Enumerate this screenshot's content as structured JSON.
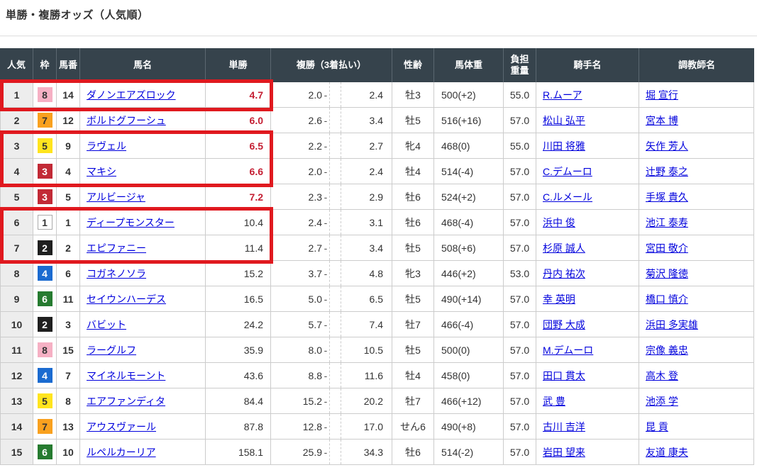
{
  "page": {
    "title": "単勝・複勝オッズ（人気順）"
  },
  "colors": {
    "header_bg": "#36434c",
    "hot_odds_red": "#c41e32",
    "highlight_box_red": "#e0191f",
    "link_blue": "#0000dd",
    "frame_colors": {
      "1": "#ffffff",
      "2": "#1f1f1f",
      "3": "#c22a36",
      "4": "#1b6bd0",
      "5": "#ffe41e",
      "6": "#267b30",
      "7": "#f9a11f",
      "8": "#f6b0c4"
    }
  },
  "highlights": {
    "color": "#e0191f",
    "boxed_rank_groups": [
      [
        1
      ],
      [
        3,
        4
      ],
      [
        6,
        7
      ]
    ]
  },
  "table": {
    "place_separator": "-",
    "headers": {
      "rank": "人気",
      "frame": "枠",
      "number": "馬番",
      "horse": "馬名",
      "win": "単勝",
      "place": "複勝（3着払い）",
      "sex_age": "性齢",
      "weight": "馬体重",
      "load_line1": "負担",
      "load_line2": "重量",
      "jockey": "騎手名",
      "trainer": "調教師名"
    },
    "rows": [
      {
        "rank": "1",
        "frame": "8",
        "number": "14",
        "horse": "ダノンエアズロック",
        "win": "4.7",
        "win_hot": true,
        "place_low": "2.0",
        "place_high": "2.4",
        "sex_age": "牡3",
        "weight": "500(+2)",
        "load": "55.0",
        "jockey": "R.ムーア",
        "trainer": "堀 宣行"
      },
      {
        "rank": "2",
        "frame": "7",
        "number": "12",
        "horse": "ボルドグフーシュ",
        "win": "6.0",
        "win_hot": true,
        "place_low": "2.6",
        "place_high": "3.4",
        "sex_age": "牡5",
        "weight": "516(+16)",
        "load": "57.0",
        "jockey": "松山 弘平",
        "trainer": "宮本 博"
      },
      {
        "rank": "3",
        "frame": "5",
        "number": "9",
        "horse": "ラヴェル",
        "win": "6.5",
        "win_hot": true,
        "place_low": "2.2",
        "place_high": "2.7",
        "sex_age": "牝4",
        "weight": "468(0)",
        "load": "55.0",
        "jockey": "川田 将雅",
        "trainer": "矢作 芳人"
      },
      {
        "rank": "4",
        "frame": "3",
        "number": "4",
        "horse": "マキシ",
        "win": "6.6",
        "win_hot": true,
        "place_low": "2.0",
        "place_high": "2.4",
        "sex_age": "牡4",
        "weight": "514(-4)",
        "load": "57.0",
        "jockey": "C.デムーロ",
        "trainer": "辻野 泰之"
      },
      {
        "rank": "5",
        "frame": "3",
        "number": "5",
        "horse": "アルビージャ",
        "win": "7.2",
        "win_hot": true,
        "place_low": "2.3",
        "place_high": "2.9",
        "sex_age": "牡6",
        "weight": "524(+2)",
        "load": "57.0",
        "jockey": "C.ルメール",
        "trainer": "手塚 貴久"
      },
      {
        "rank": "6",
        "frame": "1",
        "number": "1",
        "horse": "ディープモンスター",
        "win": "10.4",
        "win_hot": false,
        "place_low": "2.4",
        "place_high": "3.1",
        "sex_age": "牡6",
        "weight": "468(-4)",
        "load": "57.0",
        "jockey": "浜中 俊",
        "trainer": "池江 泰寿"
      },
      {
        "rank": "7",
        "frame": "2",
        "number": "2",
        "horse": "エピファニー",
        "win": "11.4",
        "win_hot": false,
        "place_low": "2.7",
        "place_high": "3.4",
        "sex_age": "牡5",
        "weight": "508(+6)",
        "load": "57.0",
        "jockey": "杉原 誠人",
        "trainer": "宮田 敬介"
      },
      {
        "rank": "8",
        "frame": "4",
        "number": "6",
        "horse": "コガネノソラ",
        "win": "15.2",
        "win_hot": false,
        "place_low": "3.7",
        "place_high": "4.8",
        "sex_age": "牝3",
        "weight": "446(+2)",
        "load": "53.0",
        "jockey": "丹内 祐次",
        "trainer": "菊沢 隆徳"
      },
      {
        "rank": "9",
        "frame": "6",
        "number": "11",
        "horse": "セイウンハーデス",
        "win": "16.5",
        "win_hot": false,
        "place_low": "5.0",
        "place_high": "6.5",
        "sex_age": "牡5",
        "weight": "490(+14)",
        "load": "57.0",
        "jockey": "幸 英明",
        "trainer": "橋口 慎介"
      },
      {
        "rank": "10",
        "frame": "2",
        "number": "3",
        "horse": "バビット",
        "win": "24.2",
        "win_hot": false,
        "place_low": "5.7",
        "place_high": "7.4",
        "sex_age": "牡7",
        "weight": "466(-4)",
        "load": "57.0",
        "jockey": "団野 大成",
        "trainer": "浜田 多実雄"
      },
      {
        "rank": "11",
        "frame": "8",
        "number": "15",
        "horse": "ラーグルフ",
        "win": "35.9",
        "win_hot": false,
        "place_low": "8.0",
        "place_high": "10.5",
        "sex_age": "牡5",
        "weight": "500(0)",
        "load": "57.0",
        "jockey": "M.デムーロ",
        "trainer": "宗像 義忠"
      },
      {
        "rank": "12",
        "frame": "4",
        "number": "7",
        "horse": "マイネルモーント",
        "win": "43.6",
        "win_hot": false,
        "place_low": "8.8",
        "place_high": "11.6",
        "sex_age": "牡4",
        "weight": "458(0)",
        "load": "57.0",
        "jockey": "田口 貫太",
        "trainer": "高木 登"
      },
      {
        "rank": "13",
        "frame": "5",
        "number": "8",
        "horse": "エアファンディタ",
        "win": "84.4",
        "win_hot": false,
        "place_low": "15.2",
        "place_high": "20.2",
        "sex_age": "牡7",
        "weight": "466(+12)",
        "load": "57.0",
        "jockey": "武 豊",
        "trainer": "池添 学"
      },
      {
        "rank": "14",
        "frame": "7",
        "number": "13",
        "horse": "アウスヴァール",
        "win": "87.8",
        "win_hot": false,
        "place_low": "12.8",
        "place_high": "17.0",
        "sex_age": "せん6",
        "weight": "490(+8)",
        "load": "57.0",
        "jockey": "古川 吉洋",
        "trainer": "昆 貢"
      },
      {
        "rank": "15",
        "frame": "6",
        "number": "10",
        "horse": "ルペルカーリア",
        "win": "158.1",
        "win_hot": false,
        "place_low": "25.9",
        "place_high": "34.3",
        "sex_age": "牡6",
        "weight": "514(-2)",
        "load": "57.0",
        "jockey": "岩田 望来",
        "trainer": "友道 康夫"
      }
    ]
  }
}
